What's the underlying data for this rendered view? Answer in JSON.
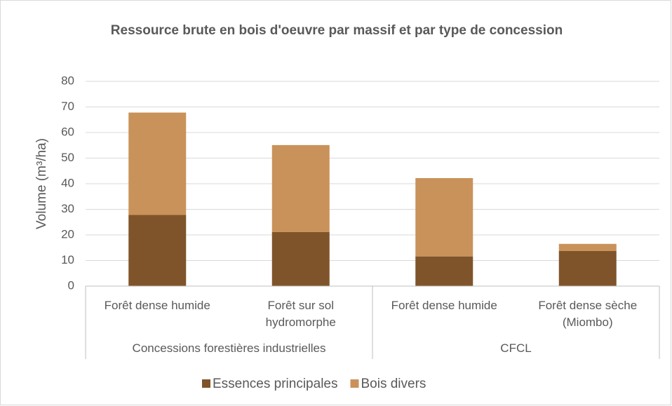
{
  "chart_data": {
    "type": "stacked_bar",
    "title": "Ressource brute en bois d'oeuvre par massif et par type de concession",
    "y_label": "Volume (m³/ha)",
    "categories": [
      "Forêt dense humide",
      "Forêt sur sol hydromorphe",
      "Forêt dense humide",
      "Forêt dense sèche (Miombo)"
    ],
    "groups": [
      {
        "name": "Concessions forestières industrielles",
        "size": 2
      },
      {
        "name": "CFCL",
        "size": 2
      }
    ],
    "series": [
      {
        "name": "Essences principales",
        "color": "#80542a",
        "values": [
          27.8,
          21.1,
          11.6,
          13.7
        ]
      },
      {
        "name": "Bois divers",
        "color": "#c9925a",
        "values": [
          40.0,
          34.0,
          30.6,
          2.8
        ]
      }
    ],
    "ylim": [
      0,
      80
    ],
    "yticks": [
      0,
      10,
      20,
      30,
      40,
      50,
      60,
      70,
      80
    ],
    "grid": true,
    "legend": "bottom"
  }
}
